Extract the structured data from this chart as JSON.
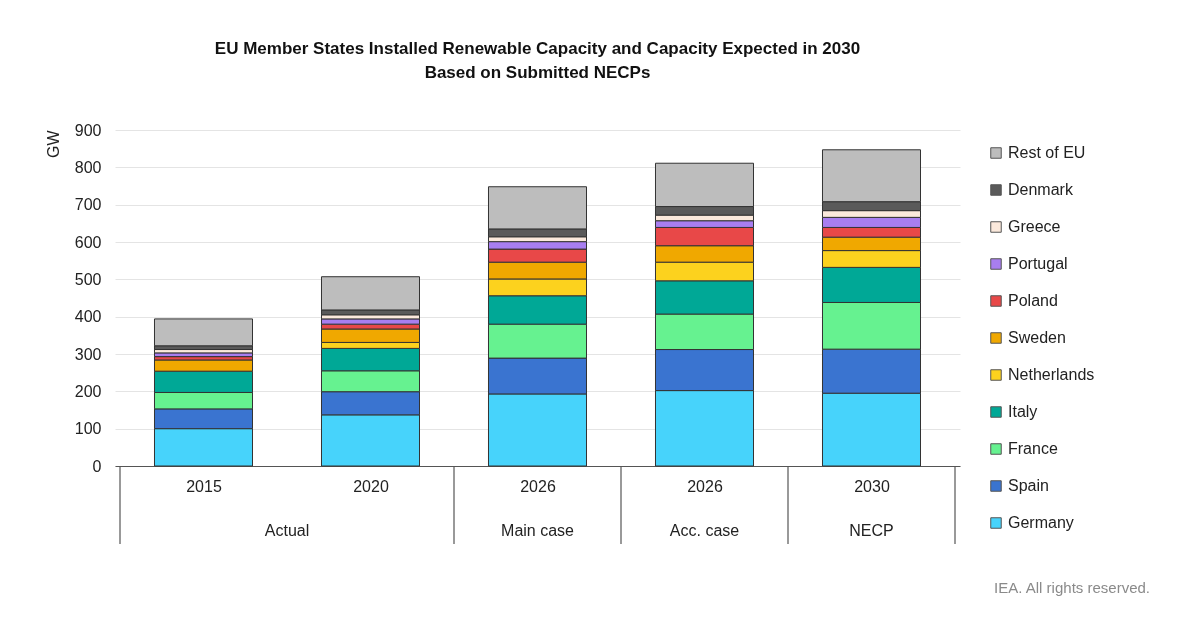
{
  "chart_data": {
    "type": "bar",
    "title": "EU Member States Installed Renewable Capacity and Capacity Expected in 2030\nBased on Submitted NECPs",
    "categories": [
      "2015",
      "2020",
      "2026",
      "2026",
      "2030"
    ],
    "ylabel": "GW",
    "ylim": [
      0,
      900
    ],
    "yticks": [
      0,
      100,
      200,
      300,
      400,
      500,
      600,
      700,
      800,
      900
    ],
    "grid": "y",
    "stacked": true,
    "legend": "right",
    "series": [
      {
        "name": "Germany",
        "color": "#47d3fb",
        "values": [
          100,
          137,
          193,
          202,
          195
        ]
      },
      {
        "name": "Spain",
        "color": "#3a74d0",
        "values": [
          53,
          62,
          96,
          110,
          118
        ]
      },
      {
        "name": "France",
        "color": "#66f290",
        "values": [
          44,
          56,
          91,
          95,
          125
        ]
      },
      {
        "name": "Italy",
        "color": "#00a896",
        "values": [
          57,
          60,
          76,
          89,
          94
        ]
      },
      {
        "name": "Netherlands",
        "color": "#fcd21e",
        "values": [
          null,
          16,
          45,
          50,
          45
        ]
      },
      {
        "name": "Sweden",
        "color": "#f0a800",
        "values": [
          30,
          36,
          45,
          44,
          36
        ]
      },
      {
        "name": "Poland",
        "color": "#e84848",
        "values": [
          9,
          13,
          35,
          49,
          26
        ]
      },
      {
        "name": "Portugal",
        "color": "#a87ef0",
        "values": [
          10,
          14,
          20,
          18,
          27
        ]
      },
      {
        "name": "Greece",
        "color": "#fbe9dc",
        "values": [
          9,
          11,
          13,
          15,
          18
        ]
      },
      {
        "name": "Denmark",
        "color": "#5a5a5a",
        "values": [
          10,
          13,
          21,
          23,
          24
        ]
      },
      {
        "name": "Rest of EU",
        "color": "#bdbdbd",
        "values": [
          72,
          89,
          113,
          116,
          139
        ]
      }
    ],
    "annotations": [
      "Actual",
      "Main case",
      "Acc. case",
      "NECP",
      "IEA. All rights reserved."
    ]
  }
}
